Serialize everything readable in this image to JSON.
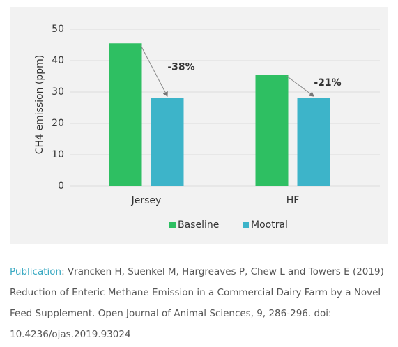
{
  "chart_data": {
    "type": "bar",
    "y_label": "CH4 emission (ppm)",
    "categories": [
      "Jersey",
      "HF"
    ],
    "series": [
      {
        "name": "Baseline",
        "color": "#2ebf62",
        "values": [
          45.5,
          35.5
        ]
      },
      {
        "name": "Mootral",
        "color": "#3db4c9",
        "values": [
          28,
          28
        ]
      }
    ],
    "annotations": [
      "-38%",
      "-21%"
    ],
    "ylim": [
      0,
      50
    ],
    "yticks": [
      0,
      10,
      20,
      30,
      40,
      50
    ],
    "grid": true,
    "legend": "bottom"
  },
  "caption": {
    "label": "Publication",
    "text": ": Vrancken H, Suenkel M, Hargreaves P, Chew L and Towers E (2019) Reduction of Enteric Methane Emission in a Commercial Dairy Farm by a Novel Feed Supplement. Open Journal of Animal Sciences, 9, 286-296. doi: 10.4236/ojas.2019.93024"
  }
}
